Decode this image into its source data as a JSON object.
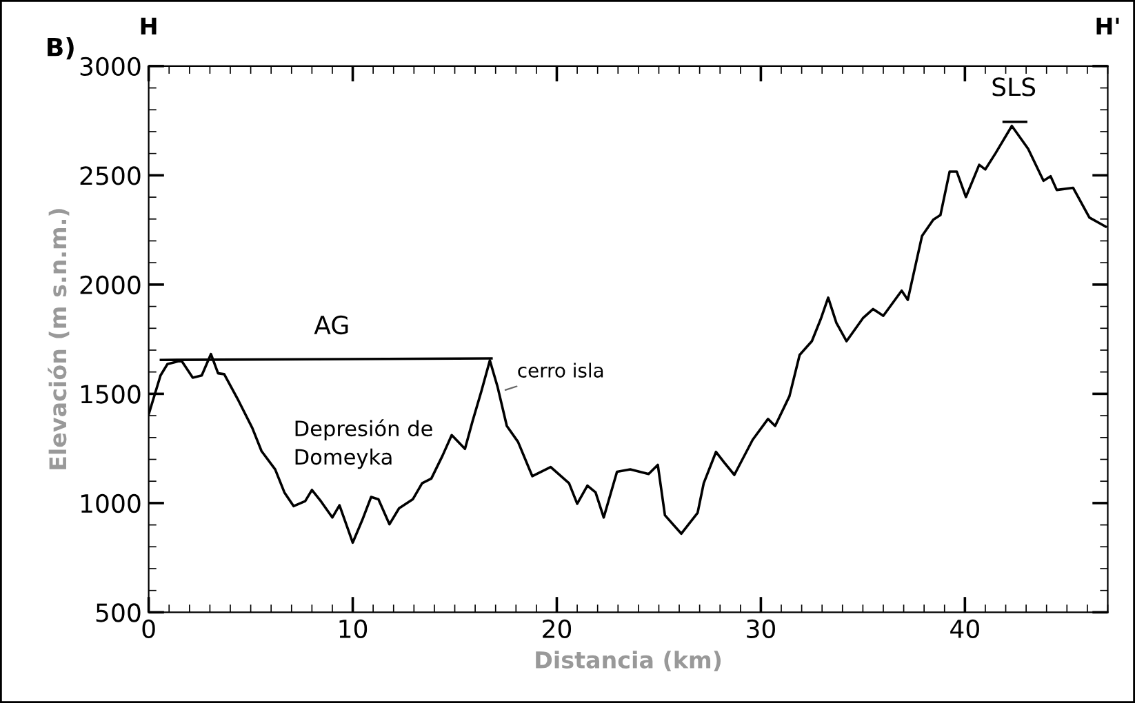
{
  "chart_data": {
    "type": "line",
    "xlabel": "Distancia (km)",
    "ylabel": "Elevación (m s.n.m.)",
    "xlim": [
      0,
      47
    ],
    "ylim": [
      500,
      3000
    ],
    "xticks": [
      0,
      10,
      20,
      30,
      40
    ],
    "yticks": [
      500,
      1000,
      1500,
      2000,
      2500,
      3000
    ],
    "grid": false,
    "legend": false,
    "marker": "none",
    "line_style": "solid",
    "series": [
      {
        "color": "#000000",
        "x": [
          0,
          0.58,
          0.92,
          1.6,
          2.16,
          2.6,
          3.05,
          3.4,
          3.7,
          4.4,
          5.08,
          5.53,
          6.2,
          6.65,
          7.1,
          7.67,
          8.0,
          8.45,
          9.0,
          9.35,
          10.0,
          10.47,
          10.9,
          11.26,
          11.8,
          12.27,
          12.95,
          13.4,
          13.85,
          14.4,
          14.85,
          15.5,
          15.87,
          16.3,
          16.72,
          17.1,
          17.55,
          18.1,
          18.8,
          19.7,
          20.6,
          21.0,
          21.5,
          21.9,
          22.3,
          22.95,
          23.6,
          24.5,
          24.95,
          25.3,
          26.1,
          26.9,
          27.2,
          27.8,
          28.2,
          28.7,
          29.6,
          30.35,
          30.7,
          31.4,
          31.9,
          32.5,
          32.95,
          33.3,
          33.7,
          34.2,
          35.0,
          35.5,
          36.0,
          36.9,
          37.2,
          37.9,
          38.45,
          38.8,
          39.25,
          39.6,
          40.05,
          40.7,
          41.0,
          41.5,
          42.3,
          43.1,
          43.85,
          44.2,
          44.5,
          45.3,
          46.1,
          46.9
        ],
        "values": [
          1406,
          1584,
          1636,
          1653,
          1574,
          1584,
          1682,
          1594,
          1590,
          1469,
          1343,
          1238,
          1154,
          1049,
          986,
          1009,
          1060,
          1007,
          934,
          990,
          819,
          923,
          1028,
          1017,
          903,
          976,
          1018,
          1091,
          1112,
          1217,
          1311,
          1248,
          1374,
          1511,
          1653,
          1531,
          1353,
          1280,
          1123,
          1165,
          1091,
          997,
          1080,
          1049,
          934,
          1143,
          1154,
          1133,
          1175,
          944,
          860,
          955,
          1091,
          1234,
          1186,
          1129,
          1290,
          1385,
          1353,
          1489,
          1678,
          1741,
          1846,
          1940,
          1825,
          1741,
          1846,
          1888,
          1857,
          1972,
          1930,
          2223,
          2297,
          2318,
          2517,
          2517,
          2401,
          2548,
          2527,
          2601,
          2726,
          2621,
          2475,
          2496,
          2433,
          2443,
          2307,
          2265
        ]
      },
      {
        "color": "#000000",
        "x": [
          0.6,
          16.8
        ],
        "values": [
          1655,
          1662
        ]
      },
      {
        "color": "#000000",
        "x": [
          41.9,
          43.0
        ],
        "values": [
          2745,
          2745
        ]
      }
    ],
    "annotations": [
      "B)",
      "H",
      "H'",
      "AG",
      "SLS",
      {
        "text": "cerro isla",
        "x": 17.3,
        "y": 1512
      },
      "Depresión de\nDomeyka"
    ]
  }
}
